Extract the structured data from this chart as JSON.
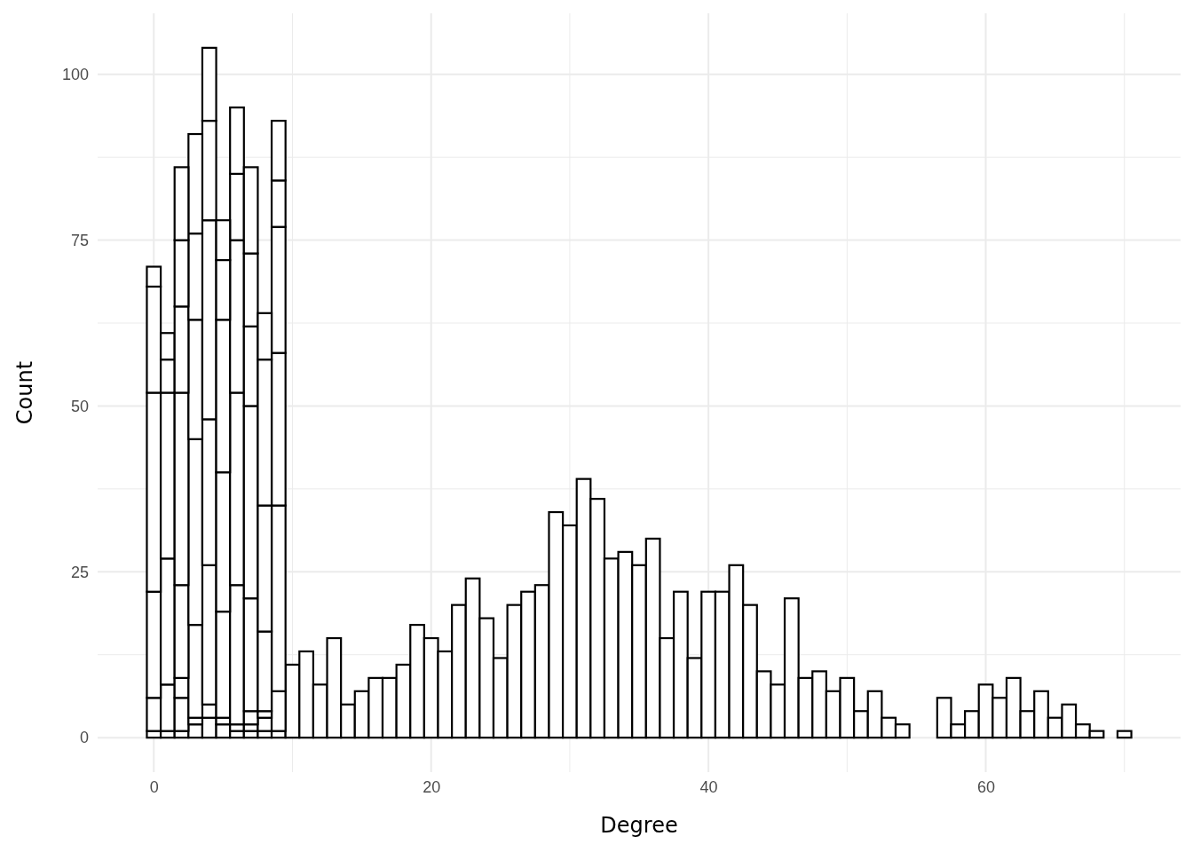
{
  "chart_data": {
    "type": "bar",
    "xlabel": "Degree",
    "ylabel": "Count",
    "x": [
      0,
      1,
      2,
      3,
      4,
      5,
      6,
      7,
      8,
      9,
      10,
      11,
      12,
      13,
      14,
      15,
      16,
      17,
      18,
      19,
      20,
      21,
      22,
      23,
      24,
      25,
      26,
      27,
      28,
      29,
      30,
      31,
      32,
      33,
      34,
      35,
      36,
      37,
      38,
      39,
      40,
      41,
      42,
      43,
      44,
      45,
      46,
      47,
      48,
      49,
      50,
      51,
      52,
      53,
      54,
      55,
      56,
      57,
      58,
      59,
      60,
      61,
      62,
      63,
      64,
      65,
      66,
      67,
      68,
      69,
      70
    ],
    "stacked": true,
    "series": [
      {
        "color": "#ffffff",
        "values": [
          1,
          1,
          1,
          2,
          3,
          2,
          1,
          1,
          1,
          1,
          11,
          13,
          8,
          15,
          5,
          7,
          9,
          9,
          11,
          17,
          15,
          13,
          20,
          24,
          18,
          12,
          20,
          22,
          23,
          34,
          32,
          39,
          36,
          27,
          28,
          26,
          30,
          15,
          22,
          12,
          22,
          22,
          26,
          20,
          10,
          8,
          21,
          9,
          10,
          7,
          9,
          4,
          7,
          3,
          2,
          0,
          0,
          6,
          2,
          4,
          8,
          6,
          9,
          4,
          7,
          3,
          5,
          2,
          1,
          0,
          1
        ]
      },
      {
        "color": "#ffffff",
        "values": [
          5,
          7,
          5,
          1,
          2,
          1,
          1,
          1,
          2,
          6,
          null,
          null,
          null,
          null,
          null,
          null,
          null,
          null,
          null,
          null,
          null,
          null,
          null,
          null,
          null,
          null,
          null,
          null,
          null,
          null,
          null,
          null,
          null,
          null,
          null,
          null,
          null,
          null,
          null,
          null,
          null,
          null,
          null,
          null,
          null,
          null,
          null,
          null,
          null,
          null,
          null,
          null,
          null,
          null,
          null,
          null,
          null,
          null,
          null,
          null,
          null,
          null,
          null,
          null,
          null,
          null,
          null,
          null,
          null,
          null,
          null
        ]
      },
      {
        "color": "#ffffff",
        "values": [
          16,
          19,
          3,
          14,
          21,
          16,
          21,
          2,
          1,
          28,
          null,
          null,
          null,
          null,
          null,
          null,
          null,
          null,
          null,
          null,
          null,
          null,
          null,
          null,
          null,
          null,
          null,
          null,
          null,
          null,
          null,
          null,
          null,
          null,
          null,
          null,
          null,
          null,
          null,
          null,
          null,
          null,
          null,
          null,
          null,
          null,
          null,
          null,
          null,
          null,
          null,
          null,
          null,
          null,
          null,
          null,
          null,
          null,
          null,
          null,
          null,
          null,
          null,
          null,
          null,
          null,
          null,
          null,
          null,
          null,
          null
        ]
      },
      {
        "color": "#ffffff",
        "values": [
          30,
          25,
          14,
          28,
          22,
          21,
          29,
          17,
          12,
          23,
          null,
          null,
          null,
          null,
          null,
          null,
          null,
          null,
          null,
          null,
          null,
          null,
          null,
          null,
          null,
          null,
          null,
          null,
          null,
          null,
          null,
          null,
          null,
          null,
          null,
          null,
          null,
          null,
          null,
          null,
          null,
          null,
          null,
          null,
          null,
          null,
          null,
          null,
          null,
          null,
          null,
          null,
          null,
          null,
          null,
          null,
          null,
          null,
          null,
          null,
          null,
          null,
          null,
          null,
          null,
          null,
          null,
          null,
          null,
          null,
          null
        ]
      },
      {
        "color": "#ffffff",
        "values": [
          16,
          5,
          29,
          18,
          30,
          23,
          23,
          29,
          19,
          19,
          null,
          null,
          null,
          null,
          null,
          null,
          null,
          null,
          null,
          null,
          null,
          null,
          null,
          null,
          null,
          null,
          null,
          null,
          null,
          null,
          null,
          null,
          null,
          null,
          null,
          null,
          null,
          null,
          null,
          null,
          null,
          null,
          null,
          null,
          null,
          null,
          null,
          null,
          null,
          null,
          null,
          null,
          null,
          null,
          null,
          null,
          null,
          null,
          null,
          null,
          null,
          null,
          null,
          null,
          null,
          null,
          null,
          null,
          null,
          null,
          null
        ]
      },
      {
        "color": "#ffffff",
        "values": [
          3,
          4,
          13,
          13,
          15,
          9,
          10,
          12,
          22,
          7,
          null,
          null,
          null,
          null,
          null,
          null,
          null,
          null,
          null,
          null,
          null,
          null,
          null,
          null,
          null,
          null,
          null,
          null,
          null,
          null,
          null,
          null,
          null,
          null,
          null,
          null,
          null,
          null,
          null,
          null,
          null,
          null,
          null,
          null,
          null,
          null,
          null,
          null,
          null,
          null,
          null,
          null,
          null,
          null,
          null,
          null,
          null,
          null,
          null,
          null,
          null,
          null,
          null,
          null,
          null,
          null,
          null,
          null,
          null,
          null,
          null
        ]
      },
      {
        "color": "#ffffff",
        "values": [
          null,
          null,
          10,
          15,
          11,
          6,
          10,
          11,
          7,
          9,
          null,
          null,
          null,
          null,
          null,
          null,
          null,
          null,
          null,
          null,
          null,
          null,
          null,
          null,
          null,
          null,
          null,
          null,
          null,
          null,
          null,
          null,
          null,
          null,
          null,
          null,
          null,
          null,
          null,
          null,
          null,
          null,
          null,
          null,
          null,
          null,
          null,
          null,
          null,
          null,
          null,
          null,
          null,
          null,
          null,
          null,
          null,
          null,
          null,
          null,
          null,
          null,
          null,
          null,
          null,
          null,
          null,
          null,
          null,
          null,
          null
        ]
      },
      {
        "color": "#ffffff",
        "values": [
          null,
          null,
          11,
          null,
          null,
          null,
          null,
          13,
          null,
          null,
          null,
          null,
          null,
          null,
          null,
          null,
          null,
          null,
          null,
          null,
          null,
          null,
          null,
          null,
          null,
          null,
          null,
          null,
          null,
          null,
          null,
          null,
          null,
          null,
          null,
          null,
          null,
          null,
          null,
          null,
          null,
          null,
          null,
          null,
          null,
          null,
          null,
          null,
          null,
          null,
          null,
          null,
          null,
          null,
          null,
          null,
          null,
          null,
          null,
          null,
          null,
          null,
          null,
          null,
          null,
          null,
          null,
          null,
          null,
          null,
          null
        ]
      }
    ],
    "xlim": [
      -4.05,
      74.05
    ],
    "ylim": [
      -5.2,
      109.2
    ],
    "xticks": [
      0,
      20,
      40,
      60
    ],
    "yticks": [
      0,
      25,
      50,
      75,
      100
    ],
    "grid": true
  }
}
